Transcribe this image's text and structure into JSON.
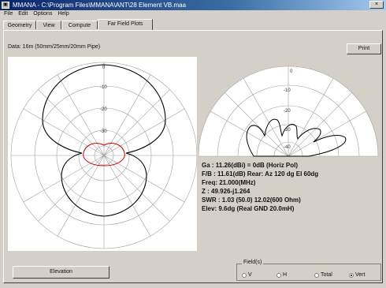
{
  "window": {
    "title": "MMANA - C:\\Program Files\\MMANA\\ANT\\28 Element VB.maa",
    "close_glyph": "×"
  },
  "menu": [
    "File",
    "Edit",
    "Options",
    "Help"
  ],
  "tabs": [
    {
      "label": "Geometry",
      "active": false
    },
    {
      "label": "View",
      "active": false
    },
    {
      "label": "Compute",
      "active": false
    },
    {
      "label": "Far Field Plots",
      "active": true
    }
  ],
  "data_file": "Data: 16m (50mm/25mm/20mm Pipe)",
  "buttons": {
    "print": "Print",
    "elevation": "Elevation"
  },
  "plot_labels": {
    "left": [
      "0",
      "-10",
      "-20",
      "-30"
    ],
    "right": [
      "0",
      "-10",
      "-20",
      "-30",
      "-40"
    ]
  },
  "results": {
    "gain": "Ga : 11.26(dBi) = 0dB  (Horiz Pol)",
    "fb": "F/B : 11.61(dB)  Rear: Az 120 dg  El 60dg",
    "freq": "Freq: 21.000(MHz)",
    "z": "Z  : 49.926-j1.264",
    "swr": "SWR : 1.03 (50.0)  12.02(600 Ohm)",
    "elev": "Elev: 9.6dg (Real GND  20.0mH)"
  },
  "field": {
    "legend": "Field(s)",
    "options": [
      "V",
      "H",
      "Total",
      "Vert"
    ],
    "selected": "Vert"
  },
  "colors": {
    "pattern": "#000000",
    "vertical_pattern": "#cc0000",
    "grid": "#a0a0a0"
  }
}
